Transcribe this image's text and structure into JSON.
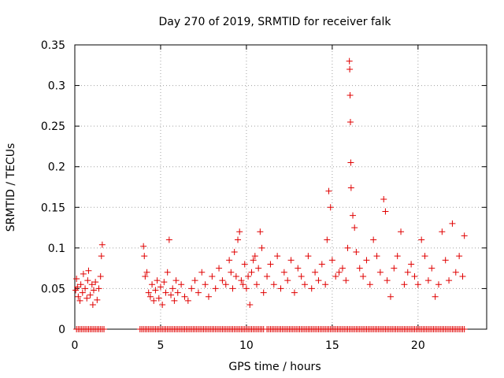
{
  "chart_data": {
    "type": "scatter",
    "title": "Day 270 of 2019, SRMTID for receiver falk",
    "xlabel": "GPS time / hours",
    "ylabel": "SRMTID / TECUs",
    "xlim": [
      0,
      24
    ],
    "ylim": [
      0,
      0.35
    ],
    "grid": true,
    "marker": "+",
    "color": "#e00000",
    "xticks": [
      0,
      5,
      10,
      15,
      20
    ],
    "xtick_labels": [
      "0",
      "5",
      "10",
      "15",
      "20"
    ],
    "yticks": [
      0,
      0.05,
      0.1,
      0.15,
      0.2,
      0.25,
      0.3,
      0.35
    ],
    "ytick_labels": [
      "0",
      "0.05",
      "0.1",
      "0.15",
      "0.2",
      "0.25",
      "0.3",
      "0.35"
    ],
    "series": [
      {
        "name": "SRMTID",
        "x": [
          0.05,
          0.1,
          0.15,
          0.2,
          0.3,
          0.35,
          0.45,
          0.5,
          0.6,
          0.7,
          0.75,
          0.8,
          0.9,
          1.0,
          1.05,
          1.1,
          1.2,
          1.3,
          1.4,
          1.5,
          1.55,
          1.6,
          4.0,
          4.05,
          4.1,
          4.2,
          4.3,
          4.4,
          4.5,
          4.6,
          4.7,
          4.8,
          4.9,
          5.0,
          5.1,
          5.2,
          5.3,
          5.4,
          5.5,
          5.6,
          5.7,
          5.8,
          5.9,
          6.0,
          6.2,
          6.4,
          6.6,
          6.8,
          7.0,
          7.2,
          7.4,
          7.6,
          7.8,
          8.0,
          8.2,
          8.4,
          8.6,
          8.8,
          9.0,
          9.1,
          9.2,
          9.3,
          9.4,
          9.5,
          9.6,
          9.7,
          9.8,
          9.9,
          10.0,
          10.1,
          10.2,
          10.3,
          10.4,
          10.5,
          10.6,
          10.7,
          10.8,
          10.9,
          11.0,
          11.2,
          11.4,
          11.6,
          11.8,
          12.0,
          12.2,
          12.4,
          12.6,
          12.8,
          13.0,
          13.2,
          13.4,
          13.6,
          13.8,
          14.0,
          14.2,
          14.4,
          14.6,
          14.7,
          14.8,
          14.9,
          15.0,
          15.2,
          15.4,
          15.6,
          15.8,
          15.9,
          16.0,
          16.02,
          16.04,
          16.06,
          16.08,
          16.1,
          16.2,
          16.3,
          16.4,
          16.6,
          16.8,
          17.0,
          17.2,
          17.4,
          17.6,
          17.8,
          18.0,
          18.1,
          18.2,
          18.4,
          18.6,
          18.8,
          19.0,
          19.2,
          19.4,
          19.6,
          19.8,
          20.0,
          20.2,
          20.4,
          20.6,
          20.8,
          21.0,
          21.2,
          21.4,
          21.6,
          21.8,
          22.0,
          22.2,
          22.4,
          22.6,
          22.7
        ],
        "y": [
          0.048,
          0.062,
          0.052,
          0.04,
          0.035,
          0.055,
          0.045,
          0.068,
          0.05,
          0.038,
          0.06,
          0.072,
          0.042,
          0.055,
          0.03,
          0.048,
          0.058,
          0.036,
          0.05,
          0.065,
          0.09,
          0.104,
          0.102,
          0.09,
          0.065,
          0.07,
          0.045,
          0.04,
          0.055,
          0.035,
          0.048,
          0.06,
          0.038,
          0.052,
          0.03,
          0.058,
          0.045,
          0.07,
          0.11,
          0.042,
          0.05,
          0.035,
          0.06,
          0.045,
          0.055,
          0.04,
          0.035,
          0.05,
          0.06,
          0.045,
          0.07,
          0.055,
          0.04,
          0.065,
          0.05,
          0.075,
          0.06,
          0.055,
          0.085,
          0.07,
          0.05,
          0.095,
          0.065,
          0.11,
          0.12,
          0.06,
          0.055,
          0.08,
          0.05,
          0.065,
          0.03,
          0.07,
          0.085,
          0.09,
          0.055,
          0.075,
          0.12,
          0.1,
          0.045,
          0.065,
          0.08,
          0.055,
          0.09,
          0.05,
          0.07,
          0.06,
          0.085,
          0.045,
          0.075,
          0.065,
          0.055,
          0.09,
          0.05,
          0.07,
          0.06,
          0.08,
          0.055,
          0.11,
          0.17,
          0.15,
          0.085,
          0.065,
          0.07,
          0.075,
          0.06,
          0.1,
          0.33,
          0.32,
          0.288,
          0.255,
          0.205,
          0.174,
          0.14,
          0.125,
          0.095,
          0.075,
          0.065,
          0.085,
          0.055,
          0.11,
          0.09,
          0.07,
          0.16,
          0.145,
          0.06,
          0.04,
          0.075,
          0.09,
          0.12,
          0.055,
          0.07,
          0.08,
          0.065,
          0.055,
          0.11,
          0.09,
          0.06,
          0.075,
          0.04,
          0.055,
          0.12,
          0.085,
          0.06,
          0.13,
          0.07,
          0.09,
          0.065,
          0.115
        ],
        "zero_hours": [
          0.1,
          0.2,
          0.3,
          0.4,
          0.5,
          0.6,
          0.7,
          0.8,
          0.9,
          1.0,
          1.1,
          1.2,
          1.3,
          1.4,
          1.5,
          1.6,
          1.7,
          3.8,
          3.9,
          4.0,
          4.1,
          4.2,
          4.3,
          4.4,
          4.5,
          4.6,
          4.7,
          4.8,
          4.9,
          5.0,
          5.1,
          5.2,
          5.3,
          5.4,
          5.5,
          5.6,
          5.7,
          5.8,
          5.9,
          6.0,
          6.1,
          6.2,
          6.3,
          6.4,
          6.5,
          6.6,
          6.7,
          6.8,
          6.9,
          7.0,
          7.1,
          7.2,
          7.3,
          7.4,
          7.5,
          7.6,
          7.7,
          7.8,
          7.9,
          8.0,
          8.1,
          8.2,
          8.3,
          8.4,
          8.5,
          8.6,
          8.7,
          8.8,
          8.9,
          9.0,
          9.1,
          9.2,
          9.3,
          9.4,
          9.5,
          9.6,
          9.7,
          9.8,
          9.9,
          10.0,
          10.1,
          10.2,
          10.3,
          10.4,
          10.5,
          10.6,
          10.7,
          10.8,
          10.9,
          11.0,
          11.2,
          11.3,
          11.4,
          11.5,
          11.6,
          11.7,
          11.8,
          11.9,
          12.0,
          12.1,
          12.2,
          12.3,
          12.4,
          12.5,
          12.6,
          12.7,
          12.8,
          12.9,
          13.0,
          13.1,
          13.2,
          13.3,
          13.4,
          13.5,
          13.6,
          13.7,
          13.8,
          13.9,
          14.0,
          14.1,
          14.2,
          14.3,
          14.4,
          14.5,
          14.6,
          14.7,
          14.8,
          14.9,
          15.0,
          15.1,
          15.2,
          15.3,
          15.4,
          15.5,
          15.6,
          15.7,
          15.8,
          15.9,
          16.0,
          16.1,
          16.2,
          16.3,
          16.4,
          16.5,
          16.6,
          16.7,
          16.8,
          16.9,
          17.0,
          17.1,
          17.2,
          17.3,
          17.4,
          17.5,
          17.6,
          17.7,
          17.8,
          17.9,
          18.0,
          18.1,
          18.2,
          18.3,
          18.4,
          18.5,
          18.6,
          18.7,
          18.8,
          18.9,
          19.0,
          19.1,
          19.2,
          19.3,
          19.4,
          19.5,
          19.6,
          19.7,
          19.8,
          19.9,
          20.0,
          20.1,
          20.2,
          20.3,
          20.4,
          20.5,
          20.6,
          20.7,
          20.8,
          20.9,
          21.0,
          21.1,
          21.2,
          21.3,
          21.4,
          21.5,
          21.6,
          21.7,
          21.8,
          21.9,
          22.0,
          22.1,
          22.2,
          22.3,
          22.4,
          22.5,
          22.6,
          22.7
        ]
      }
    ]
  }
}
